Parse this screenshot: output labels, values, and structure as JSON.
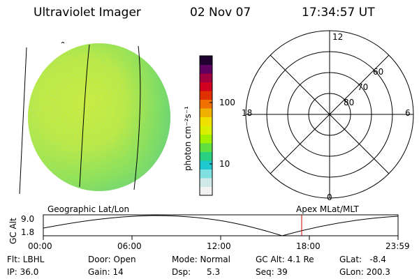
{
  "header": {
    "instrument": "Ultraviolet Imager",
    "date": "02 Nov 07",
    "time": "17:34:57 UT"
  },
  "colorbar": {
    "unit_label": "photon cm⁻²s⁻¹",
    "ticks": [
      "100",
      "10"
    ],
    "scale": "log",
    "colors": [
      "#f2f2f2",
      "#cfe8e8",
      "#80e0e0",
      "#20c8d0",
      "#28d080",
      "#60e040",
      "#a0f000",
      "#d8f000",
      "#f0e000",
      "#f0b000",
      "#f07000",
      "#e03000",
      "#d00020",
      "#a00040",
      "#600060",
      "#200030"
    ]
  },
  "polar_plot": {
    "top_label": "12",
    "bottom_label": "0",
    "left_label": "18",
    "right_label": "6",
    "ring_labels": [
      "60",
      "70",
      "80"
    ]
  },
  "geo_label": "Geographic Lat/Lon",
  "apex_label": "Apex  MLat/MLT",
  "altitude_plot": {
    "axis_label": "GC Alt",
    "y_ticks": [
      "9.0",
      "1.8"
    ],
    "x_ticks": [
      "00:00",
      "06:00",
      "12:00",
      "18:00",
      "23:59"
    ],
    "marker_color": "#cc0000",
    "line_color": "#000000"
  },
  "status": {
    "flt": "Flt: LBHL",
    "ip": "IP: 36.0",
    "door": "Door: Open",
    "gain": "Gain: 14",
    "mode": "Mode: Normal",
    "dsp": "Dsp:      5.3",
    "gc_alt": "GC Alt: 4.1 Re",
    "seq": "Seq: 39",
    "glat": "GLat:   -8.4",
    "glon": "GLon: 200.3"
  }
}
